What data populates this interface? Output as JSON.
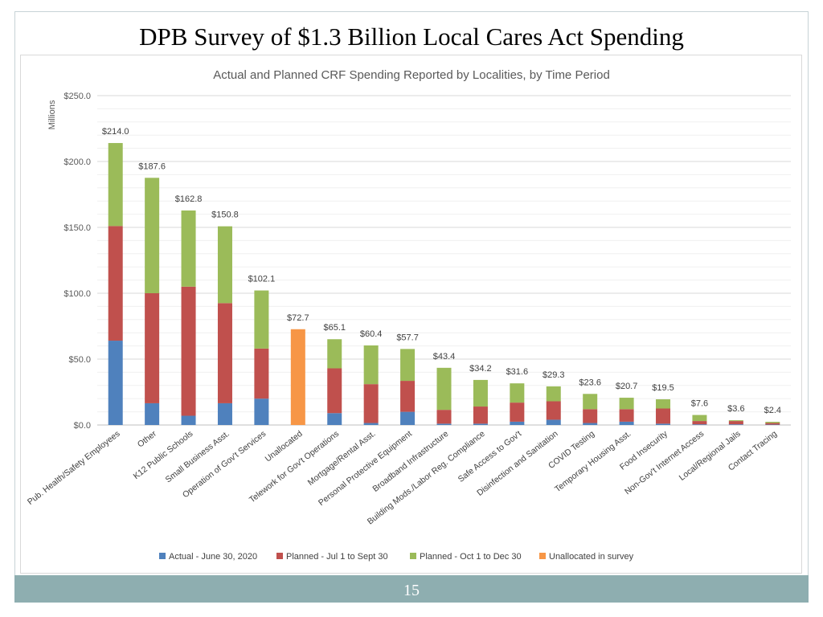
{
  "slide": {
    "title": "DPB Survey of $1.3 Billion Local Cares Act Spending",
    "page_number": "15"
  },
  "colors": {
    "actual": "#4f81bd",
    "planned_q3": "#c0504d",
    "planned_q4": "#9bbb59",
    "unallocated": "#f79646",
    "footer": "#8eaeb0"
  },
  "chart_data": {
    "type": "bar",
    "stacked": true,
    "title": "Actual and Planned CRF Spending Reported by Localities, by Time Period",
    "ylabel": "Millions",
    "xlabel": "",
    "ylim": [
      0,
      250
    ],
    "yticks": [
      0,
      50,
      100,
      150,
      200,
      250
    ],
    "ytick_labels": [
      "$0.0",
      "$50.0",
      "$100.0",
      "$150.0",
      "$200.0",
      "$250.0"
    ],
    "grid": true,
    "legend_position": "bottom",
    "categories": [
      "Pub. Health/Safety Employees",
      "Other",
      "K12 Public Schools",
      "Small Business Asst.",
      "Operation of Gov't Services",
      "Unallocated",
      "Telework for Gov't Operations",
      "Mortgage/Rental Asst.",
      "Personal Protective Equipment",
      "Broadband Infrastructure",
      "Building Mods./Labor Reg. Compliance",
      "Safe Access to Gov't",
      "Disinfection and Sanitation",
      "COVID Testing",
      "Temporary Housing Asst.",
      "Food Insecurity",
      "Non-Gov't Internet Access",
      "Local/Regional Jails",
      "Contact Tracing"
    ],
    "series": [
      {
        "name": "Actual - June 30, 2020",
        "color": "#4f81bd",
        "values": [
          64,
          16.5,
          7,
          16.5,
          20,
          0,
          9,
          1.5,
          10,
          1,
          1,
          2.5,
          4,
          1.5,
          2.5,
          1,
          0.5,
          0.5,
          0.3
        ]
      },
      {
        "name": "Planned - Jul 1 to Sept 30",
        "color": "#c0504d",
        "values": [
          87,
          83.5,
          98,
          76,
          38,
          0,
          34,
          29.5,
          23.5,
          10.5,
          13,
          14.5,
          14,
          10.5,
          9.5,
          11.5,
          2.5,
          2.5,
          1.2
        ]
      },
      {
        "name": "Planned - Oct 1 to Dec 30",
        "color": "#9bbb59",
        "values": [
          63,
          87.6,
          57.8,
          58.3,
          44.1,
          0,
          22.1,
          29.4,
          24.2,
          31.9,
          20.2,
          14.6,
          11.3,
          11.6,
          8.7,
          7,
          4.6,
          0.6,
          0.9
        ]
      },
      {
        "name": "Unallocated in survey",
        "color": "#f79646",
        "values": [
          0,
          0,
          0,
          0,
          0,
          72.7,
          0,
          0,
          0,
          0,
          0,
          0,
          0,
          0,
          0,
          0,
          0,
          0,
          0
        ]
      }
    ],
    "totals": [
      214.0,
      187.6,
      162.8,
      150.8,
      102.1,
      72.7,
      65.1,
      60.4,
      57.7,
      43.4,
      34.2,
      31.6,
      29.3,
      23.6,
      20.7,
      19.5,
      7.6,
      3.6,
      2.4
    ],
    "total_labels": [
      "$214.0",
      "$187.6",
      "$162.8",
      "$150.8",
      "$102.1",
      "$72.7",
      "$65.1",
      "$60.4",
      "$57.7",
      "$43.4",
      "$34.2",
      "$31.6",
      "$29.3",
      "$23.6",
      "$20.7",
      "$19.5",
      "$7.6",
      "$3.6",
      "$2.4"
    ]
  }
}
